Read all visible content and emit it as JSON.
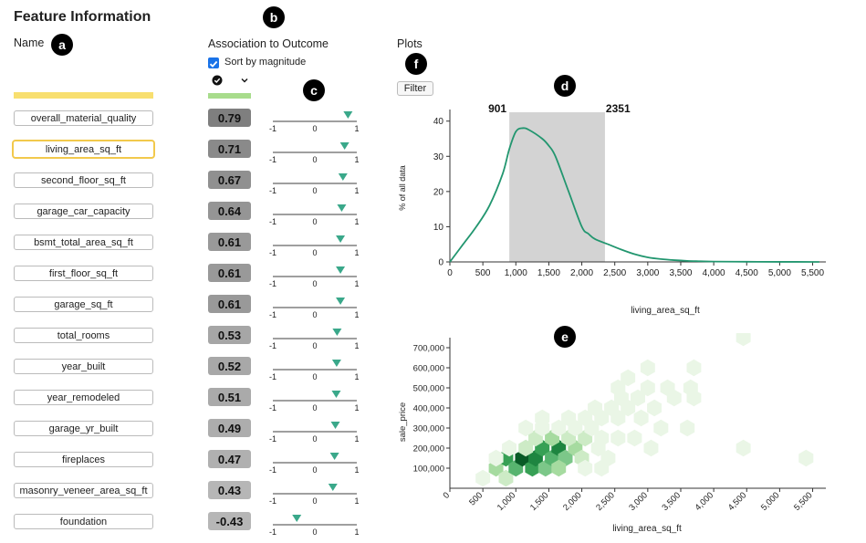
{
  "header": {
    "title": "Feature Information",
    "name_label": "Name",
    "association_label": "Association to Outcome",
    "plots_label": "Plots",
    "sort_label": "Sort by magnitude",
    "filter_label": "Filter"
  },
  "badges": {
    "a": "a",
    "b": "b",
    "c": "c",
    "d": "d",
    "e": "e",
    "f": "f"
  },
  "features": [
    {
      "name": "overall_material_quality",
      "value": "0.79",
      "num": 0.79,
      "color": "#7f7f7f"
    },
    {
      "name": "living_area_sq_ft",
      "value": "0.71",
      "num": 0.71,
      "color": "#8a8a8a",
      "selected": true
    },
    {
      "name": "second_floor_sq_ft",
      "value": "0.67",
      "num": 0.67,
      "color": "#909090"
    },
    {
      "name": "garage_car_capacity",
      "value": "0.64",
      "num": 0.64,
      "color": "#959595"
    },
    {
      "name": "bsmt_total_area_sq_ft",
      "value": "0.61",
      "num": 0.61,
      "color": "#999999"
    },
    {
      "name": "first_floor_sq_ft",
      "value": "0.61",
      "num": 0.61,
      "color": "#999999"
    },
    {
      "name": "garage_sq_ft",
      "value": "0.61",
      "num": 0.61,
      "color": "#999999"
    },
    {
      "name": "total_rooms",
      "value": "0.53",
      "num": 0.53,
      "color": "#a6a6a6"
    },
    {
      "name": "year_built",
      "value": "0.52",
      "num": 0.52,
      "color": "#a8a8a8"
    },
    {
      "name": "year_remodeled",
      "value": "0.51",
      "num": 0.51,
      "color": "#aaaaaa"
    },
    {
      "name": "garage_yr_built",
      "value": "0.49",
      "num": 0.49,
      "color": "#adadad"
    },
    {
      "name": "fireplaces",
      "value": "0.47",
      "num": 0.47,
      "color": "#b0b0b0"
    },
    {
      "name": "masonry_veneer_area_sq_ft",
      "value": "0.43",
      "num": 0.43,
      "color": "#b6b6b6"
    },
    {
      "name": "foundation",
      "value": "-0.43",
      "num": -0.43,
      "color": "#b6b6b6"
    }
  ],
  "slider": {
    "min_label": "-1",
    "mid_label": "0",
    "max_label": "1"
  },
  "chart_data": [
    {
      "type": "area",
      "title": "",
      "xlabel": "living_area_sq_ft",
      "ylabel": "% of all data",
      "xlim": [
        0,
        5700
      ],
      "ylim": [
        0,
        42
      ],
      "xticks": [
        "0",
        "500",
        "1,000",
        "1,500",
        "2,000",
        "2,500",
        "3,000",
        "3,500",
        "4,000",
        "4,500",
        "5,000",
        "5,500"
      ],
      "xtick_values": [
        0,
        500,
        1000,
        1500,
        2000,
        2500,
        3000,
        3500,
        4000,
        4500,
        5000,
        5500
      ],
      "yticks": [
        "0",
        "10",
        "20",
        "30",
        "40"
      ],
      "ytick_values": [
        0,
        10,
        20,
        30,
        40
      ],
      "brush_range": [
        901,
        2351
      ],
      "brush_labels": [
        "901",
        "2351"
      ],
      "x": [
        0,
        200,
        400,
        600,
        800,
        900,
        1000,
        1100,
        1200,
        1400,
        1500,
        1600,
        1800,
        2000,
        2100,
        2200,
        2400,
        2600,
        2800,
        3000,
        3200,
        3400,
        3600,
        3800,
        4000,
        4500,
        5000,
        5600
      ],
      "y": [
        0,
        5,
        10,
        16,
        25,
        32,
        37,
        38,
        37.5,
        35,
        33,
        30,
        20,
        10,
        8,
        6.5,
        5,
        3.5,
        2.2,
        1.3,
        0.8,
        0.5,
        0.3,
        0.2,
        0.1,
        0.05,
        0.02,
        0
      ]
    },
    {
      "type": "heatmap",
      "subtype": "hexbin",
      "xlabel": "living_area_sq_ft",
      "ylabel": "sale_price",
      "xlim": [
        0,
        5700
      ],
      "ylim": [
        0,
        750000
      ],
      "xticks": [
        "0",
        "500",
        "1,000",
        "1,500",
        "2,000",
        "2,500",
        "3,000",
        "3,500",
        "4,000",
        "4,500",
        "5,000",
        "5,500"
      ],
      "xtick_values": [
        0,
        500,
        1000,
        1500,
        2000,
        2500,
        3000,
        3500,
        4000,
        4500,
        5000,
        5500
      ],
      "yticks": [
        "100,000",
        "200,000",
        "300,000",
        "400,000",
        "500,000",
        "600,000",
        "700,000"
      ],
      "ytick_values": [
        100000,
        200000,
        300000,
        400000,
        500000,
        600000,
        700000
      ],
      "bins": [
        {
          "x": 500,
          "y": 50000,
          "c": 1
        },
        {
          "x": 700,
          "y": 100000,
          "c": 3
        },
        {
          "x": 850,
          "y": 50000,
          "c": 2
        },
        {
          "x": 850,
          "y": 150000,
          "c": 6
        },
        {
          "x": 1000,
          "y": 100000,
          "c": 5
        },
        {
          "x": 1100,
          "y": 150000,
          "c": 9
        },
        {
          "x": 1250,
          "y": 100000,
          "c": 6
        },
        {
          "x": 1300,
          "y": 150000,
          "c": 7
        },
        {
          "x": 1400,
          "y": 200000,
          "c": 6
        },
        {
          "x": 1450,
          "y": 100000,
          "c": 4
        },
        {
          "x": 1550,
          "y": 150000,
          "c": 5
        },
        {
          "x": 1650,
          "y": 200000,
          "c": 7
        },
        {
          "x": 1750,
          "y": 150000,
          "c": 4
        },
        {
          "x": 1650,
          "y": 100000,
          "c": 3
        },
        {
          "x": 1900,
          "y": 200000,
          "c": 3
        },
        {
          "x": 1550,
          "y": 250000,
          "c": 3
        },
        {
          "x": 1800,
          "y": 250000,
          "c": 2
        },
        {
          "x": 2050,
          "y": 250000,
          "c": 2
        },
        {
          "x": 2000,
          "y": 150000,
          "c": 2
        },
        {
          "x": 1300,
          "y": 250000,
          "c": 2
        },
        {
          "x": 1150,
          "y": 200000,
          "c": 2
        },
        {
          "x": 900,
          "y": 200000,
          "c": 1
        },
        {
          "x": 700,
          "y": 150000,
          "c": 1
        },
        {
          "x": 1150,
          "y": 300000,
          "c": 1
        },
        {
          "x": 1400,
          "y": 300000,
          "c": 1
        },
        {
          "x": 1650,
          "y": 300000,
          "c": 1
        },
        {
          "x": 1900,
          "y": 300000,
          "c": 1
        },
        {
          "x": 2150,
          "y": 300000,
          "c": 1
        },
        {
          "x": 2300,
          "y": 250000,
          "c": 1
        },
        {
          "x": 2250,
          "y": 200000,
          "c": 1
        },
        {
          "x": 2400,
          "y": 150000,
          "c": 1
        },
        {
          "x": 2300,
          "y": 100000,
          "c": 1
        },
        {
          "x": 2050,
          "y": 100000,
          "c": 1
        },
        {
          "x": 1800,
          "y": 350000,
          "c": 1
        },
        {
          "x": 2050,
          "y": 350000,
          "c": 1
        },
        {
          "x": 2300,
          "y": 350000,
          "c": 1
        },
        {
          "x": 2550,
          "y": 350000,
          "c": 1
        },
        {
          "x": 2550,
          "y": 250000,
          "c": 1
        },
        {
          "x": 2200,
          "y": 400000,
          "c": 1
        },
        {
          "x": 2450,
          "y": 400000,
          "c": 1
        },
        {
          "x": 2700,
          "y": 400000,
          "c": 1
        },
        {
          "x": 2600,
          "y": 450000,
          "c": 1
        },
        {
          "x": 2850,
          "y": 450000,
          "c": 1
        },
        {
          "x": 2900,
          "y": 350000,
          "c": 1
        },
        {
          "x": 2800,
          "y": 250000,
          "c": 1
        },
        {
          "x": 3100,
          "y": 400000,
          "c": 1
        },
        {
          "x": 2550,
          "y": 500000,
          "c": 1
        },
        {
          "x": 2700,
          "y": 550000,
          "c": 1
        },
        {
          "x": 3000,
          "y": 500000,
          "c": 1
        },
        {
          "x": 3000,
          "y": 600000,
          "c": 1
        },
        {
          "x": 3400,
          "y": 450000,
          "c": 1
        },
        {
          "x": 3300,
          "y": 500000,
          "c": 1
        },
        {
          "x": 3650,
          "y": 500000,
          "c": 1
        },
        {
          "x": 3600,
          "y": 300000,
          "c": 1
        },
        {
          "x": 3200,
          "y": 300000,
          "c": 1
        },
        {
          "x": 3050,
          "y": 200000,
          "c": 1
        },
        {
          "x": 3700,
          "y": 450000,
          "c": 1
        },
        {
          "x": 3700,
          "y": 600000,
          "c": 1
        },
        {
          "x": 4450,
          "y": 750000,
          "c": 1
        },
        {
          "x": 4450,
          "y": 200000,
          "c": 1
        },
        {
          "x": 5400,
          "y": 150000,
          "c": 1
        },
        {
          "x": 1400,
          "y": 350000,
          "c": 1
        }
      ]
    }
  ]
}
